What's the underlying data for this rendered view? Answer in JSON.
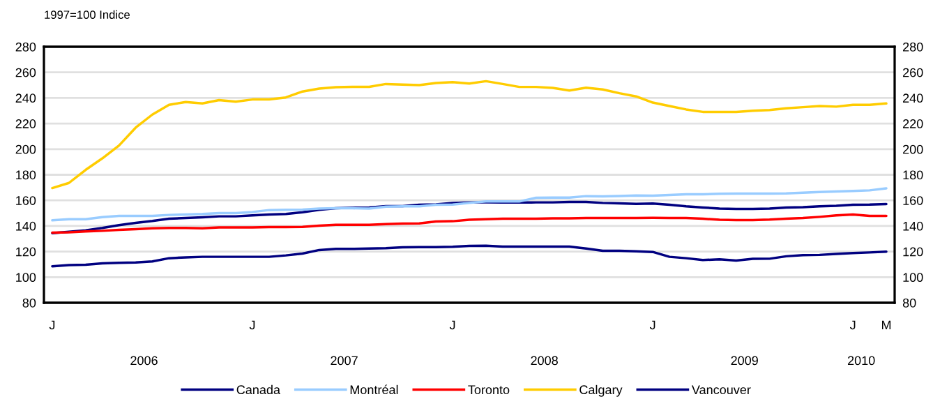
{
  "chart_data": {
    "type": "line",
    "ylabel": "1997=100 Indice",
    "categories": [
      "J",
      null,
      null,
      null,
      null,
      null,
      null,
      null,
      null,
      null,
      null,
      null,
      "J",
      null,
      null,
      null,
      null,
      null,
      null,
      null,
      null,
      null,
      null,
      null,
      "J",
      null,
      null,
      null,
      null,
      null,
      null,
      null,
      null,
      null,
      null,
      null,
      "J",
      null,
      null,
      null,
      null,
      null,
      null,
      null,
      null,
      null,
      null,
      null,
      "J",
      null,
      "M"
    ],
    "series": [
      {
        "name": "Canada",
        "color": "#000080",
        "values": [
          134.4,
          135.5,
          136.6,
          138.4,
          140.6,
          142.4,
          143.9,
          145.7,
          146.2,
          146.8,
          147.5,
          147.5,
          148.2,
          148.9,
          149.3,
          150.7,
          152.6,
          153.8,
          154.2,
          154.4,
          155.5,
          155.5,
          156.6,
          156.9,
          158,
          158.4,
          158.4,
          158.3,
          158.3,
          158.4,
          158.4,
          158.7,
          158.7,
          158,
          157.6,
          157.2,
          157.5,
          156.6,
          155.3,
          154.4,
          153.6,
          153.3,
          153.3,
          153.6,
          154.4,
          154.7,
          155.3,
          155.8,
          156.6,
          156.7,
          157.1
        ]
      },
      {
        "name": "Montréal",
        "color": "#99ccff",
        "values": [
          144.4,
          145.3,
          145.3,
          146.9,
          147.8,
          147.8,
          147.8,
          148.6,
          148.9,
          149.3,
          150,
          150,
          150.9,
          152.4,
          152.6,
          152.7,
          153.6,
          153.8,
          153.8,
          153.6,
          155.1,
          155.3,
          155.3,
          156.6,
          156.7,
          158,
          159.1,
          159.1,
          159.1,
          162,
          162.2,
          162.2,
          163.3,
          163.1,
          163.4,
          163.8,
          163.6,
          164.2,
          164.7,
          164.7,
          165.1,
          165.3,
          165.3,
          165.3,
          165.4,
          166,
          166.5,
          166.9,
          167.3,
          167.8,
          169.4
        ]
      },
      {
        "name": "Toronto",
        "color": "#ff0000",
        "values": [
          134.8,
          135.1,
          135.7,
          136.2,
          137,
          137.5,
          138.2,
          138.4,
          138.4,
          138.2,
          138.8,
          138.8,
          138.9,
          139.1,
          139.1,
          139.3,
          140.2,
          140.9,
          140.9,
          140.9,
          141.5,
          141.8,
          142,
          143.5,
          143.7,
          144.8,
          145.3,
          145.7,
          145.7,
          145.7,
          146,
          146,
          146.2,
          146.2,
          146.2,
          146.2,
          146.3,
          146.2,
          146.2,
          145.7,
          144.8,
          144.6,
          144.6,
          145,
          145.7,
          146.2,
          147.1,
          148.2,
          148.9,
          147.8,
          147.8
        ]
      },
      {
        "name": "Calgary",
        "color": "#ffcc00",
        "values": [
          169.6,
          173.6,
          183.8,
          192.8,
          202.8,
          216.8,
          227,
          234.6,
          236.8,
          235.7,
          238.3,
          237.1,
          238.8,
          238.9,
          240.4,
          245,
          247.3,
          248.4,
          248.7,
          248.7,
          250.9,
          250.4,
          250,
          251.7,
          252.4,
          251.3,
          253.1,
          250.9,
          248.6,
          248.6,
          247.8,
          245.8,
          248,
          246.6,
          243.7,
          241.2,
          236.4,
          233.7,
          231,
          229.1,
          229.1,
          229.1,
          230,
          230.6,
          231.9,
          232.8,
          233.7,
          233.2,
          234.6,
          234.6,
          235.7
        ]
      },
      {
        "name": "Vancouver",
        "color": "#000080",
        "values": [
          108.5,
          109.4,
          109.7,
          110.8,
          111.2,
          111.5,
          112.3,
          114.8,
          115.4,
          115.9,
          115.9,
          115.9,
          115.9,
          115.9,
          117,
          118.4,
          121.2,
          122.1,
          122.1,
          122.4,
          122.6,
          123.3,
          123.5,
          123.5,
          123.7,
          124.4,
          124.6,
          123.9,
          123.9,
          123.9,
          123.9,
          123.9,
          122.4,
          120.6,
          120.6,
          120.2,
          119.7,
          115.9,
          114.8,
          113.4,
          113.9,
          113,
          114.3,
          114.4,
          116.3,
          117.2,
          117.4,
          118.1,
          118.8,
          119.3,
          119.9
        ]
      }
    ],
    "ylim": [
      80,
      280
    ],
    "yticks": [
      80,
      100,
      120,
      140,
      160,
      180,
      200,
      220,
      240,
      260,
      280
    ],
    "y2lim": [
      80,
      280
    ],
    "y2ticks": [
      80,
      100,
      120,
      140,
      160,
      180,
      200,
      220,
      240,
      260,
      280
    ],
    "annotations": [
      "2006",
      "2007",
      "2008",
      "2009",
      "2010"
    ],
    "grid": "y",
    "legend": "bottom",
    "marker": "none",
    "line_style": "solid"
  }
}
